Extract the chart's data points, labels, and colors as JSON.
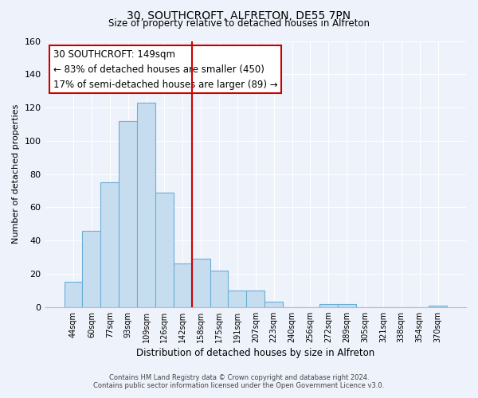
{
  "title": "30, SOUTHCROFT, ALFRETON, DE55 7PN",
  "subtitle": "Size of property relative to detached houses in Alfreton",
  "xlabel": "Distribution of detached houses by size in Alfreton",
  "ylabel": "Number of detached properties",
  "bar_labels": [
    "44sqm",
    "60sqm",
    "77sqm",
    "93sqm",
    "109sqm",
    "126sqm",
    "142sqm",
    "158sqm",
    "175sqm",
    "191sqm",
    "207sqm",
    "223sqm",
    "240sqm",
    "256sqm",
    "272sqm",
    "289sqm",
    "305sqm",
    "321sqm",
    "338sqm",
    "354sqm",
    "370sqm"
  ],
  "bar_values": [
    15,
    46,
    75,
    112,
    123,
    69,
    26,
    29,
    22,
    10,
    10,
    3,
    0,
    0,
    2,
    2,
    0,
    0,
    0,
    0,
    1
  ],
  "bar_color": "#c6ddf0",
  "bar_edge_color": "#6aaed6",
  "ylim": [
    0,
    160
  ],
  "yticks": [
    0,
    20,
    40,
    60,
    80,
    100,
    120,
    140,
    160
  ],
  "property_line_x": 6.5,
  "annotation_title": "30 SOUTHCROFT: 149sqm",
  "annotation_line1": "← 83% of detached houses are smaller (450)",
  "annotation_line2": "17% of semi-detached houses are larger (89) →",
  "annotation_box_color": "#ffffff",
  "annotation_box_edge": "#cc0000",
  "vline_color": "#cc0000",
  "footnote1": "Contains HM Land Registry data © Crown copyright and database right 2024.",
  "footnote2": "Contains public sector information licensed under the Open Government Licence v3.0.",
  "bg_color": "#eef2fa",
  "plot_bg_color": "#eef2fa",
  "grid_color": "#ffffff"
}
